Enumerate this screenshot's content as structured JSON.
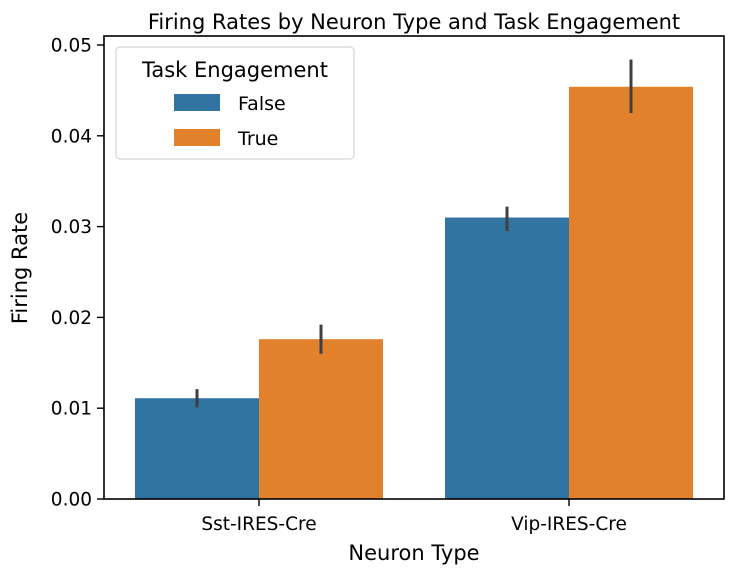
{
  "chart_data": {
    "type": "bar",
    "title": "Firing Rates by Neuron Type and Task Engagement",
    "xlabel": "Neuron Type",
    "ylabel": "Firing Rate",
    "categories": [
      "Sst-IRES-Cre",
      "Vip-IRES-Cre"
    ],
    "ylim": [
      0,
      0.0505
    ],
    "yticks": [
      "0.00",
      "0.01",
      "0.02",
      "0.03",
      "0.04",
      "0.05"
    ],
    "legend": {
      "title": "Task Engagement",
      "placement": "top-left"
    },
    "grid": false,
    "series": [
      {
        "name": "False",
        "color": "#3274a1",
        "values": [
          0.0111,
          0.031
        ],
        "error_low": [
          0.0101,
          0.0295
        ],
        "error_high": [
          0.0121,
          0.0322
        ]
      },
      {
        "name": "True",
        "color": "#e1812c",
        "values": [
          0.0176,
          0.0454
        ],
        "error_low": [
          0.016,
          0.0425
        ],
        "error_high": [
          0.0192,
          0.0484
        ]
      }
    ],
    "error_bar_color": "#3f3f3f"
  }
}
